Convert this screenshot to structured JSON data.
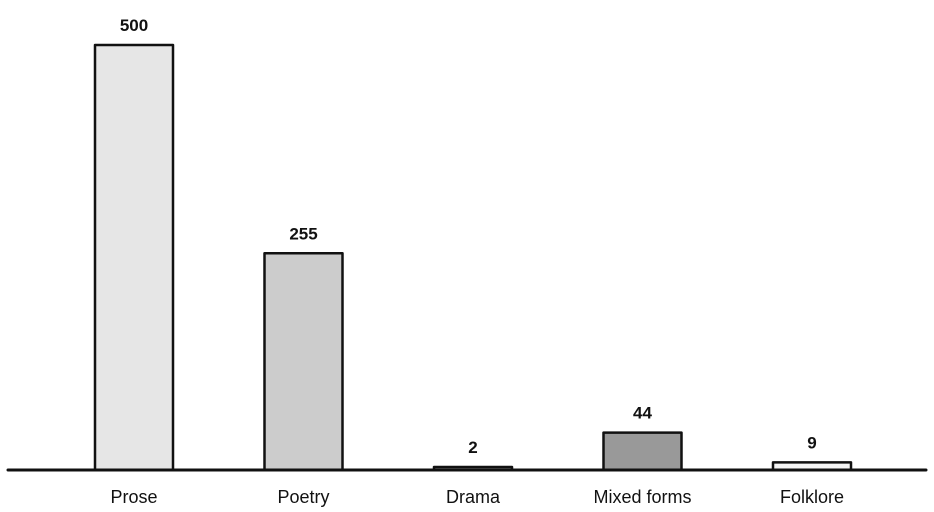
{
  "chart_data": {
    "type": "bar",
    "title": "",
    "xlabel": "",
    "ylabel": "",
    "categories": [
      "Prose",
      "Poetry",
      "Drama",
      "Mixed forms",
      "Folklore"
    ],
    "values": [
      500,
      255,
      2,
      44,
      9
    ],
    "data_labels": [
      "500",
      "255",
      "2",
      "44",
      "9"
    ],
    "ylim": [
      0,
      500
    ],
    "grid": false,
    "legend": "none",
    "colors": [
      "#e6e6e6",
      "#cccccc",
      "#b3b3b3",
      "#999999",
      "#f5f5f5"
    ],
    "stroke_color": "#111111"
  }
}
